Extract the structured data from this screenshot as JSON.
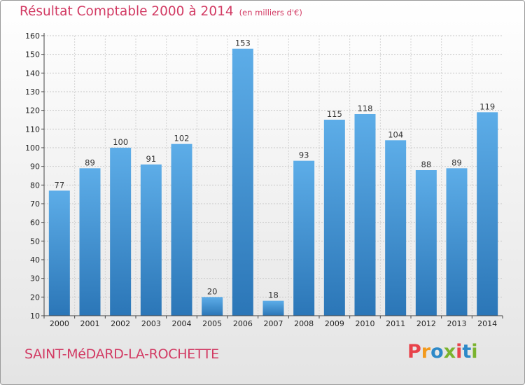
{
  "header": {
    "title": "Résultat Comptable 2000 à 2014",
    "unit": "(en milliers d'€)"
  },
  "footer": {
    "commune": "SAINT-MéDARD-LA-ROCHETTE",
    "logo": "Proxiti",
    "logo_colors": [
      "#e8424a",
      "#f39a1d",
      "#2d89c8",
      "#7ab32e",
      "#e8424a",
      "#2d89c8",
      "#7ab32e"
    ]
  },
  "colors": {
    "bar_top": "#5dade8",
    "bar_bottom": "#2b76b7",
    "accent": "#d23a63"
  },
  "chart_data": {
    "type": "bar",
    "categories": [
      "2000",
      "2001",
      "2002",
      "2003",
      "2004",
      "2005",
      "2006",
      "2007",
      "2008",
      "2009",
      "2010",
      "2011",
      "2012",
      "2013",
      "2014"
    ],
    "values": [
      77,
      89,
      100,
      91,
      102,
      20,
      153,
      18,
      93,
      115,
      118,
      104,
      88,
      89,
      119
    ],
    "value_labels": [
      "77",
      "89",
      "100",
      "91",
      "102",
      "20",
      "153",
      "18",
      "93",
      "115",
      "118",
      "104",
      "88",
      "89",
      "119"
    ],
    "y_ticks": [
      "10",
      "20",
      "30",
      "40",
      "50",
      "60",
      "70",
      "80",
      "90",
      "100",
      "110",
      "120",
      "130",
      "140",
      "150",
      "160"
    ],
    "ylim": [
      10,
      160
    ],
    "grid": true,
    "legend": "none"
  }
}
